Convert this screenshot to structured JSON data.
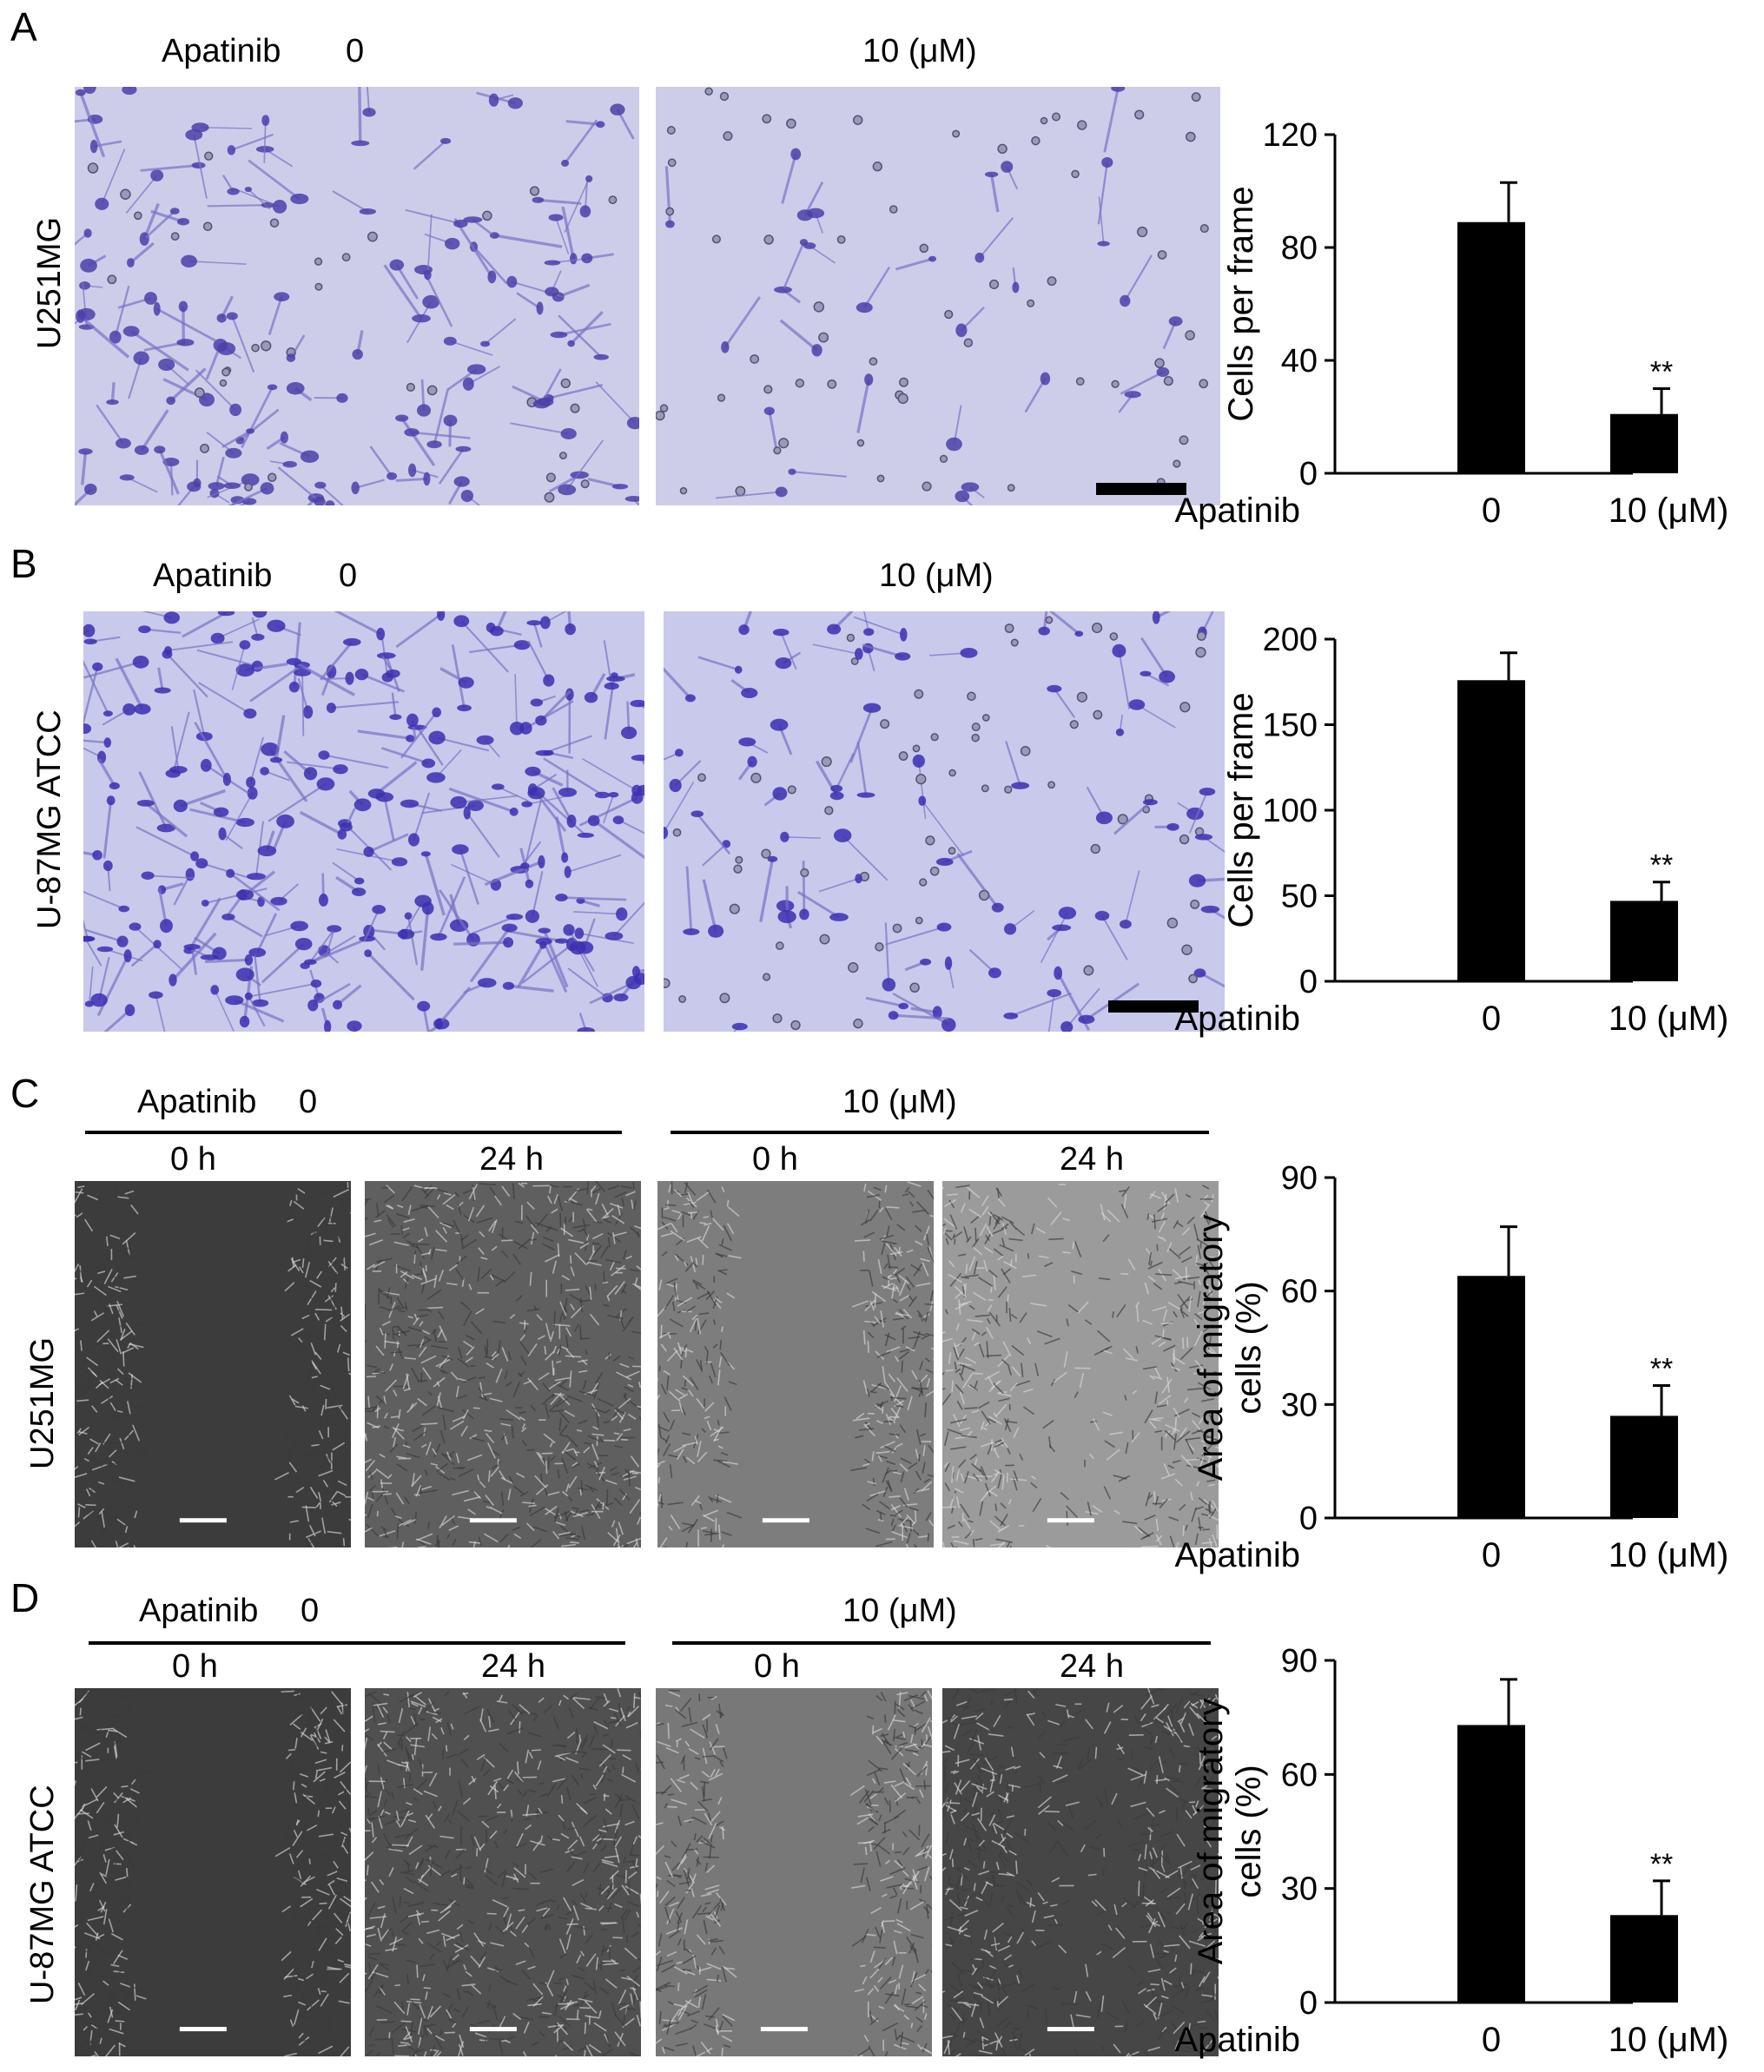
{
  "panels": [
    {
      "letter": "A",
      "cell_line": "U251MG",
      "treat_label": "Apatinib",
      "dose0": "0",
      "dose1": "10 (μM)",
      "times": []
    },
    {
      "letter": "B",
      "cell_line": "U-87MG ATCC",
      "treat_label": "Apatinib",
      "dose0": "0",
      "dose1": "10 (μM)",
      "times": []
    },
    {
      "letter": "C",
      "cell_line": "U251MG",
      "treat_label": "Apatinib",
      "dose0": "0",
      "dose1": "10 (μM)",
      "times": [
        "0 h",
        "24 h",
        "0 h",
        "24 h"
      ]
    },
    {
      "letter": "D",
      "cell_line": "U-87MG ATCC",
      "treat_label": "Apatinib",
      "dose0": "0",
      "dose1": "10 (μM)",
      "times": [
        "0 h",
        "24 h",
        "0 h",
        "24 h"
      ]
    }
  ],
  "colors": {
    "crystal_violet_bg": "#cdcdea",
    "crystal_violet_cell": "#4b40a8",
    "phase_bg": "#6e6e6e",
    "bar": "#000000"
  },
  "chart_data": [
    {
      "type": "bar",
      "panel": "A",
      "categories": [
        "0",
        "10 (μM)"
      ],
      "values": [
        89,
        21
      ],
      "errors": [
        14,
        9
      ],
      "ylabel": "Cells per frame",
      "xlabel": "Apatinib",
      "yticks": [
        0,
        40,
        80,
        120
      ],
      "ylim": [
        0,
        120
      ],
      "annotations": [
        "",
        "**"
      ]
    },
    {
      "type": "bar",
      "panel": "B",
      "categories": [
        "0",
        "10 (μM)"
      ],
      "values": [
        176,
        47
      ],
      "errors": [
        16,
        11
      ],
      "ylabel": "Cells per frame",
      "xlabel": "Apatinib",
      "yticks": [
        0,
        50,
        100,
        150,
        200
      ],
      "ylim": [
        0,
        200
      ],
      "annotations": [
        "",
        "**"
      ]
    },
    {
      "type": "bar",
      "panel": "C",
      "categories": [
        "0",
        "10 (μM)"
      ],
      "values": [
        64,
        27
      ],
      "errors": [
        13,
        8
      ],
      "ylabel": [
        "Area of migratory",
        "cells (%)"
      ],
      "xlabel": "Apatinib",
      "yticks": [
        0,
        30,
        60,
        90
      ],
      "ylim": [
        0,
        90
      ],
      "annotations": [
        "",
        "**"
      ]
    },
    {
      "type": "bar",
      "panel": "D",
      "categories": [
        "0",
        "10 (μM)"
      ],
      "values": [
        73,
        23
      ],
      "errors": [
        12,
        9
      ],
      "ylabel": [
        "Area of migratory",
        "cells (%)"
      ],
      "xlabel": "Apatinib",
      "yticks": [
        0,
        30,
        60,
        90
      ],
      "ylim": [
        0,
        90
      ],
      "annotations": [
        "",
        "**"
      ]
    }
  ]
}
